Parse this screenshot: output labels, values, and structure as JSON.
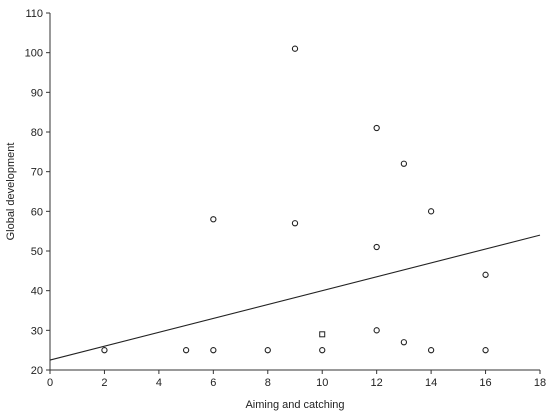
{
  "chart_data": {
    "type": "scatter",
    "xlabel": "Aiming and catching",
    "ylabel": "Global development",
    "xlim": [
      0,
      18
    ],
    "ylim": [
      20,
      110
    ],
    "xticks": [
      0,
      2,
      4,
      6,
      8,
      10,
      12,
      14,
      16,
      18
    ],
    "yticks": [
      20,
      30,
      40,
      50,
      60,
      70,
      80,
      90,
      100,
      110
    ],
    "grid": false,
    "marker": "open-circle",
    "points": [
      {
        "x": 2,
        "y": 25
      },
      {
        "x": 5,
        "y": 25
      },
      {
        "x": 6,
        "y": 25
      },
      {
        "x": 6,
        "y": 58
      },
      {
        "x": 8,
        "y": 25
      },
      {
        "x": 9,
        "y": 101
      },
      {
        "x": 9,
        "y": 57
      },
      {
        "x": 10,
        "y": 25
      },
      {
        "x": 10,
        "y": 29
      },
      {
        "x": 12,
        "y": 81
      },
      {
        "x": 12,
        "y": 51
      },
      {
        "x": 12,
        "y": 30
      },
      {
        "x": 13,
        "y": 72
      },
      {
        "x": 13,
        "y": 27
      },
      {
        "x": 14,
        "y": 60
      },
      {
        "x": 14,
        "y": 25
      },
      {
        "x": 16,
        "y": 44
      },
      {
        "x": 16,
        "y": 25
      }
    ],
    "fit_line": {
      "x": [
        0,
        18
      ],
      "y": [
        22.5,
        54
      ]
    }
  }
}
